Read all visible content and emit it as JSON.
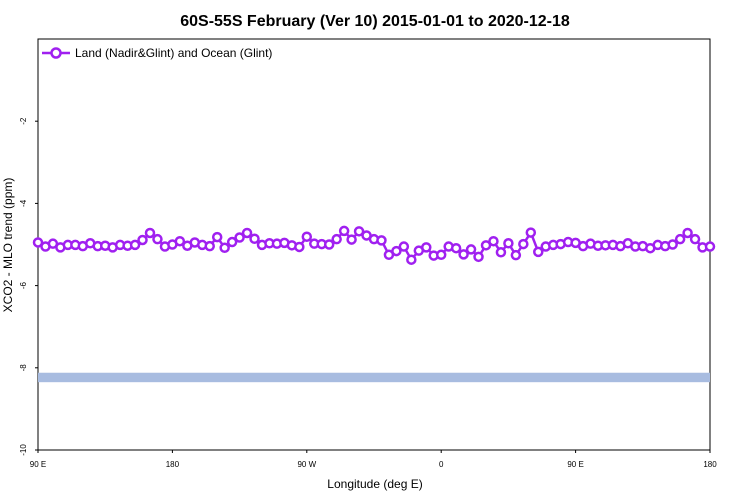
{
  "chart_data": {
    "type": "line",
    "title": "60S-55S February (Ver 10)   2015-01-01 to 2020-12-18",
    "xlabel": "Longitude (deg E)",
    "ylabel": "XCO2 - MLO trend (ppm)",
    "xlim": [
      90,
      450
    ],
    "ylim": [
      -10,
      0
    ],
    "yticks": [
      -10,
      -8,
      -6,
      -4,
      -2
    ],
    "xticks": [
      {
        "value": 90,
        "label": "90 E"
      },
      {
        "value": 162,
        "label": "180"
      },
      {
        "value": 234,
        "label": "90 W"
      },
      {
        "value": 306,
        "label": "0"
      },
      {
        "value": 378,
        "label": "90 E"
      },
      {
        "value": 450,
        "label": "180"
      }
    ],
    "grid": false,
    "legend_position": "top-left",
    "series": [
      {
        "name": "Land (Nadir&Glint) and Ocean (Glint)",
        "color": "#a020f0",
        "marker": "open-circle",
        "x": [
          90,
          94,
          98,
          102,
          106,
          110,
          114,
          118,
          122,
          126,
          130,
          134,
          138,
          142,
          146,
          150,
          154,
          158,
          162,
          166,
          170,
          174,
          178,
          182,
          186,
          190,
          194,
          198,
          202,
          206,
          210,
          214,
          218,
          222,
          226,
          230,
          234,
          238,
          242,
          246,
          250,
          254,
          258,
          262,
          266,
          270,
          274,
          278,
          282,
          286,
          290,
          294,
          298,
          302,
          306,
          310,
          314,
          318,
          322,
          326,
          330,
          334,
          338,
          342,
          346,
          350,
          354,
          358,
          362,
          366,
          370,
          374,
          378,
          382,
          386,
          390,
          394,
          398,
          402,
          406,
          410,
          414,
          418,
          422,
          426,
          430,
          434,
          438,
          442,
          446,
          450
        ],
        "values": [
          -4.95,
          -5.05,
          -4.98,
          -5.07,
          -5.01,
          -5.01,
          -5.04,
          -4.97,
          -5.04,
          -5.03,
          -5.07,
          -5.01,
          -5.03,
          -5.01,
          -4.89,
          -4.72,
          -4.87,
          -5.05,
          -5.0,
          -4.92,
          -5.03,
          -4.95,
          -5.01,
          -5.04,
          -4.82,
          -5.08,
          -4.94,
          -4.83,
          -4.72,
          -4.86,
          -5.01,
          -4.97,
          -4.98,
          -4.96,
          -5.02,
          -5.06,
          -4.81,
          -4.98,
          -4.99,
          -5.0,
          -4.87,
          -4.67,
          -4.88,
          -4.68,
          -4.78,
          -4.87,
          -4.9,
          -5.25,
          -5.16,
          -5.05,
          -5.37,
          -5.15,
          -5.07,
          -5.27,
          -5.25,
          -5.05,
          -5.09,
          -5.24,
          -5.12,
          -5.3,
          -5.02,
          -4.92,
          -5.19,
          -4.97,
          -5.26,
          -4.99,
          -4.71,
          -5.18,
          -5.05,
          -5.01,
          -4.99,
          -4.94,
          -4.96,
          -5.04,
          -4.98,
          -5.03,
          -5.02,
          -5.01,
          -5.04,
          -4.97,
          -5.05,
          -5.04,
          -5.09,
          -5.01,
          -5.04,
          -5.0,
          -4.87,
          -4.72,
          -4.87,
          -5.07,
          -5.05
        ]
      }
    ],
    "band": {
      "y_low": -8.35,
      "y_high": -8.12,
      "color": "#a8bce0"
    }
  }
}
